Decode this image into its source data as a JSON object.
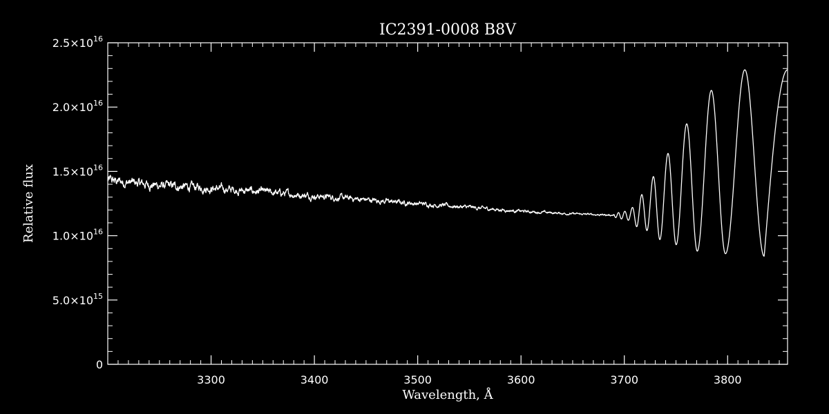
{
  "chart_data": {
    "type": "line",
    "title": "IC2391-0008   B8V",
    "xlabel": "Wavelength, Å",
    "ylabel": "Relative flux",
    "xlim": [
      3200,
      3858
    ],
    "ylim": [
      0,
      2.5e+16
    ],
    "x_ticks": [
      3300,
      3400,
      3500,
      3600,
      3700,
      3800
    ],
    "x_tick_labels": [
      "3300",
      "3400",
      "3500",
      "3600",
      "3700",
      "3800"
    ],
    "y_ticks": [
      {
        "mantissa": "0",
        "exponent": "",
        "value": 0
      },
      {
        "mantissa": "5.0×10",
        "exponent": "15",
        "value": 5000000000000000.0
      },
      {
        "mantissa": "1.0×10",
        "exponent": "16",
        "value": 1e+16
      },
      {
        "mantissa": "1.5×10",
        "exponent": "16",
        "value": 1.5e+16
      },
      {
        "mantissa": "2.0×10",
        "exponent": "16",
        "value": 2e+16
      },
      {
        "mantissa": "2.5×10",
        "exponent": "16",
        "value": 2.5e+16
      }
    ],
    "grid": false,
    "line_color": "#ffffff",
    "background_color": "#000000",
    "series": [
      {
        "continuum": {
          "x": [
            3200,
            3250,
            3300,
            3350,
            3400,
            3450,
            3500,
            3550,
            3600,
            3650,
            3690
          ],
          "y": [
            1.43e+16,
            1.39e+16,
            1.37e+16,
            1.34e+16,
            1.31e+16,
            1.28e+16,
            1.25e+16,
            1.22e+16,
            1.19e+16,
            1.17e+16,
            1.16e+16
          ]
        },
        "balmer_lines": [
          {
            "x": 3691.6,
            "min": 1.14e+16,
            "peak": 1.18e+16
          },
          {
            "x": 3697.2,
            "min": 1.13e+16,
            "peak": 1.19e+16
          },
          {
            "x": 3703.9,
            "min": 1.12e+16,
            "peak": 1.22e+16
          },
          {
            "x": 3712.0,
            "min": 1.07e+16,
            "peak": 1.32e+16
          },
          {
            "x": 3721.9,
            "min": 1.04e+16,
            "peak": 1.46e+16
          },
          {
            "x": 3734.4,
            "min": 9700000000000000.0,
            "peak": 1.64e+16
          },
          {
            "x": 3750.2,
            "min": 9300000000000000.0,
            "peak": 1.87e+16
          },
          {
            "x": 3770.6,
            "min": 8800000000000000.0,
            "peak": 2.13e+16
          },
          {
            "x": 3797.9,
            "min": 8600000000000000.0,
            "peak": 2.29e+16
          },
          {
            "x": 3835.4,
            "min": 8400000000000000.0,
            "peak": 2.3e+16
          }
        ],
        "end_point": {
          "x": 3858,
          "y": 2.29e+16
        }
      }
    ]
  }
}
